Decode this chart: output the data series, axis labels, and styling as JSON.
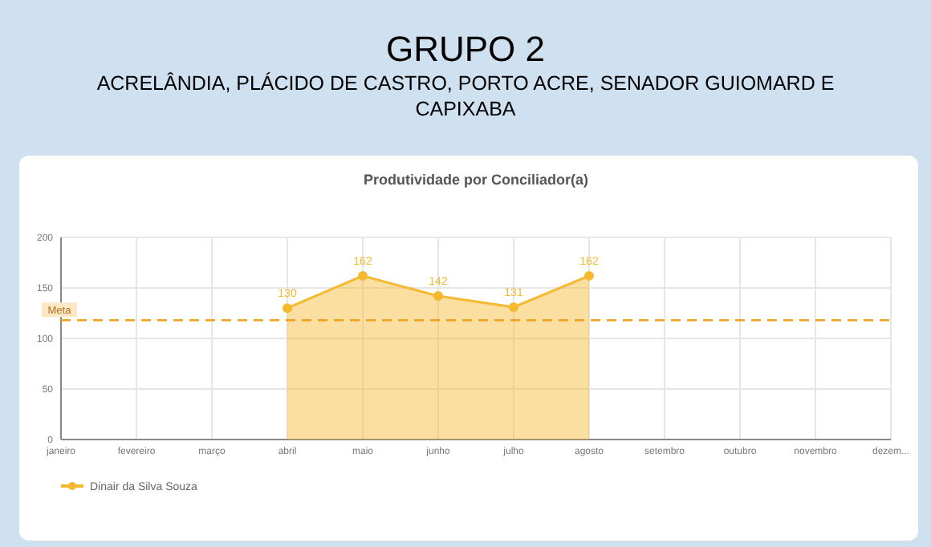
{
  "chart_data": {
    "type": "area",
    "title": "GRUPO 2",
    "subtitle": "ACRELÂNDIA, PLÁCIDO DE CASTRO, PORTO ACRE, SENADOR GUIOMARD E CAPIXABA",
    "annotations": [
      "Produtividade por Conciliador(a)"
    ],
    "categories": [
      "janeiro",
      "fevereiro",
      "março",
      "abril",
      "maio",
      "junho",
      "julho",
      "agosto",
      "setembro",
      "outubro",
      "novembro",
      "dezem..."
    ],
    "series": [
      {
        "name": "Dinair da Silva Souza",
        "color": "#f5b82e",
        "values": [
          null,
          null,
          null,
          130,
          162,
          142,
          131,
          162,
          null,
          null,
          null,
          null
        ]
      }
    ],
    "data_labels": true,
    "marker": "circle",
    "ylim": [
      0,
      200
    ],
    "yticks": [
      0,
      50,
      100,
      150,
      200
    ],
    "grid": true,
    "legend": "bottom left",
    "ref_lines": [
      {
        "axis": "y",
        "value": 118,
        "label": "Meta",
        "color": "#f0a020",
        "line_style": "dashed"
      }
    ]
  }
}
